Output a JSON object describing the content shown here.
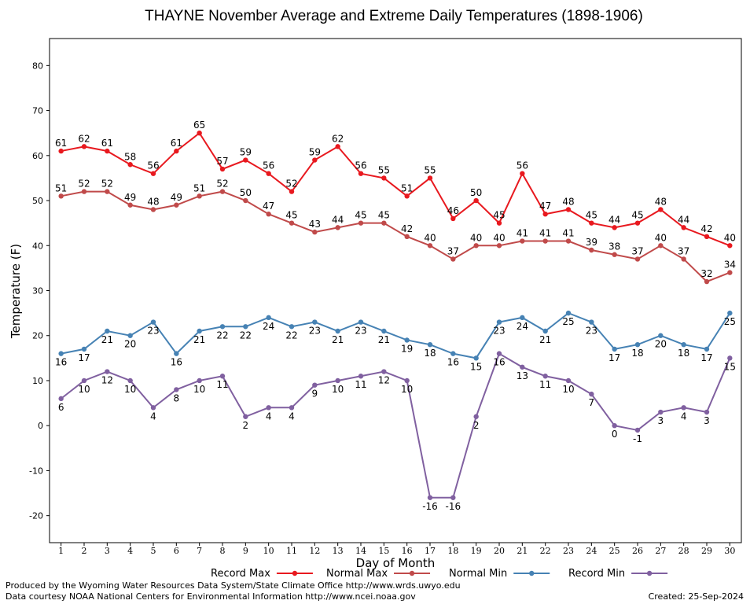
{
  "chart_data": {
    "type": "line",
    "title": "THAYNE November Average and Extreme Daily Temperatures (1898-1906)",
    "xlabel": "Day of Month",
    "ylabel": "Temperature (F)",
    "ylim": [
      -26,
      86
    ],
    "yticks": [
      -20,
      -10,
      0,
      10,
      20,
      30,
      40,
      50,
      60,
      70,
      80
    ],
    "x": [
      1,
      2,
      3,
      4,
      5,
      6,
      7,
      8,
      9,
      10,
      11,
      12,
      13,
      14,
      15,
      16,
      17,
      18,
      19,
      20,
      21,
      22,
      23,
      24,
      25,
      26,
      27,
      28,
      29,
      30
    ],
    "grid": true,
    "legend_position": "bottom",
    "series": [
      {
        "name": "Record Max",
        "color": "#e8191f",
        "label_position": "above",
        "values": [
          61,
          62,
          61,
          58,
          56,
          61,
          65,
          57,
          59,
          56,
          52,
          59,
          62,
          56,
          55,
          51,
          55,
          46,
          50,
          45,
          56,
          47,
          48,
          45,
          44,
          45,
          48,
          44,
          42,
          40
        ]
      },
      {
        "name": "Normal Max",
        "color": "#c04a4a",
        "label_position": "above",
        "values": [
          51,
          52,
          52,
          49,
          48,
          49,
          51,
          52,
          50,
          47,
          45,
          43,
          44,
          45,
          45,
          42,
          40,
          37,
          40,
          40,
          41,
          41,
          41,
          39,
          38,
          37,
          40,
          37,
          32,
          34
        ]
      },
      {
        "name": "Normal Min",
        "color": "#4682b4",
        "label_position": "below",
        "values": [
          16,
          17,
          21,
          20,
          23,
          16,
          21,
          22,
          22,
          24,
          22,
          23,
          21,
          23,
          21,
          19,
          18,
          16,
          15,
          23,
          24,
          21,
          25,
          23,
          17,
          18,
          20,
          18,
          17,
          25
        ]
      },
      {
        "name": "Record Min",
        "color": "#8060a0",
        "label_position": "below",
        "values": [
          6,
          10,
          12,
          10,
          4,
          8,
          10,
          11,
          2,
          4,
          4,
          9,
          10,
          11,
          12,
          10,
          -16,
          -16,
          2,
          16,
          13,
          11,
          10,
          7,
          0,
          -1,
          3,
          4,
          3,
          15
        ]
      }
    ]
  },
  "footer": {
    "produced_by": "Produced by the Wyoming Water Resources Data System/State Climate Office http://www.wrds.uwyo.edu",
    "courtesy": "Data courtesy NOAA National Centers for Environmental Information http://www.ncei.noaa.gov",
    "created": "Created:  25-Sep-2024"
  }
}
